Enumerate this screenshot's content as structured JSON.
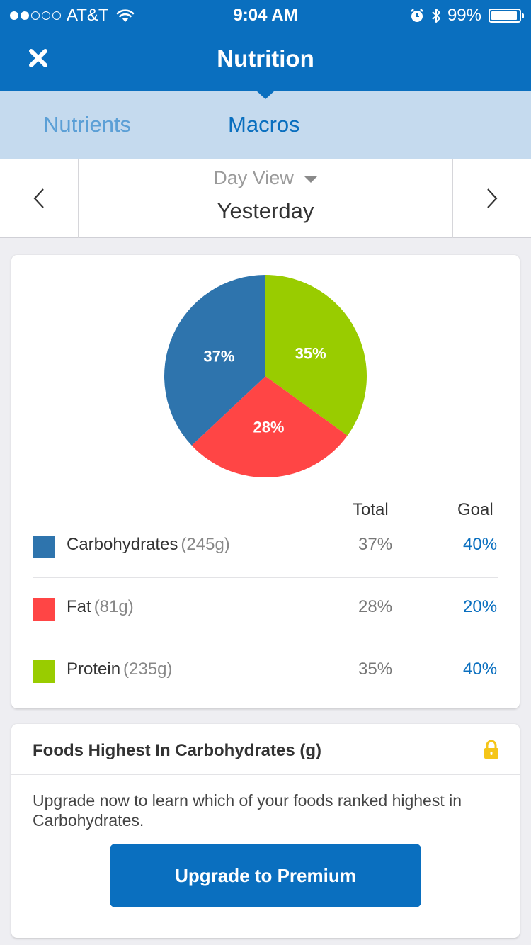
{
  "status_bar": {
    "carrier": "AT&T",
    "time": "9:04 AM",
    "battery": "99%",
    "signal_bars_filled": 2,
    "signal_bars_total": 5
  },
  "header": {
    "title": "Nutrition",
    "close_icon": "close-icon"
  },
  "tabs": [
    {
      "label": "Nutrients",
      "active": false
    },
    {
      "label": "Macros",
      "active": true
    }
  ],
  "date_nav": {
    "view_label": "Day View",
    "date_label": "Yesterday"
  },
  "macros": {
    "total_header": "Total",
    "goal_header": "Goal",
    "rows": [
      {
        "name": "Carbohydrates",
        "grams": "(245g)",
        "total": "37%",
        "goal": "40%",
        "color": "#2e74ad"
      },
      {
        "name": "Fat",
        "grams": "(81g)",
        "total": "28%",
        "goal": "20%",
        "color": "#ff4545"
      },
      {
        "name": "Protein",
        "grams": "(235g)",
        "total": "35%",
        "goal": "40%",
        "color": "#99cc00"
      }
    ]
  },
  "chart_data": {
    "type": "pie",
    "categories": [
      "Carbohydrates",
      "Fat",
      "Protein"
    ],
    "values": [
      37,
      28,
      35
    ],
    "labels": [
      "37%",
      "28%",
      "35%"
    ],
    "colors": [
      "#2e74ad",
      "#ff4545",
      "#99cc00"
    ]
  },
  "highest_foods": {
    "title": "Foods Highest In Carbohydrates (g)",
    "message": "Upgrade now to learn which of your foods ranked highest in Carbohydrates.",
    "button_label": "Upgrade to Premium",
    "lock_color": "#f5c518"
  }
}
